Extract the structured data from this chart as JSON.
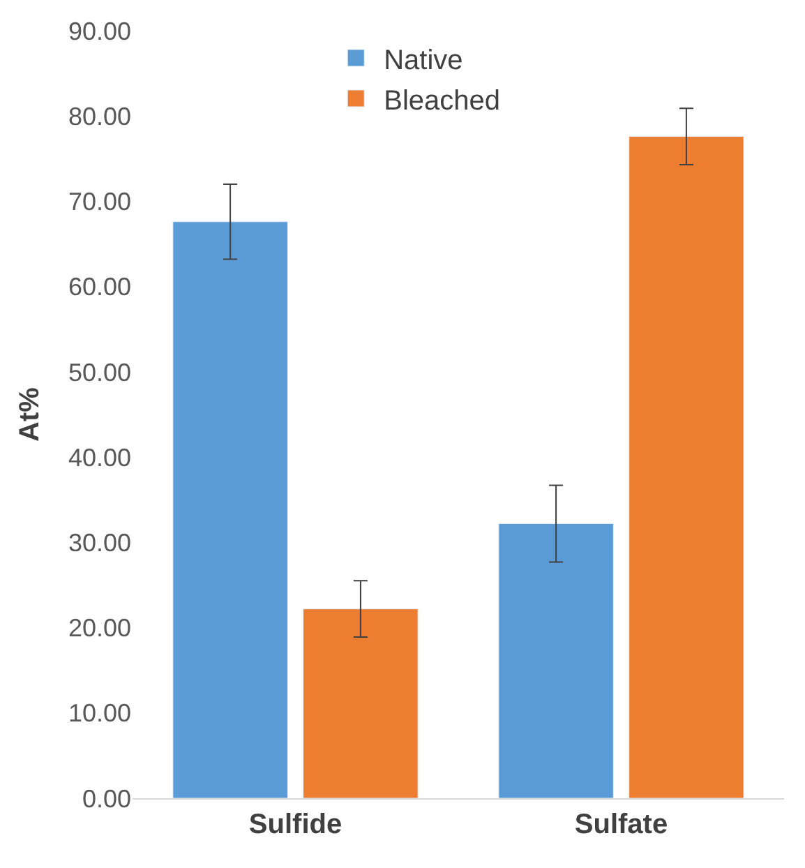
{
  "chart_data": {
    "type": "bar",
    "ylabel": "At%",
    "categories": [
      "Sulfide",
      "Sulfate"
    ],
    "series": [
      {
        "name": "Native",
        "color": "#5b9bd5",
        "values": [
          67.6,
          32.2
        ],
        "errors": [
          4.4,
          4.5
        ]
      },
      {
        "name": "Bleached",
        "color": "#ed7d31",
        "values": [
          22.2,
          77.6
        ],
        "errors": [
          3.3,
          3.3
        ]
      }
    ],
    "ylim": [
      0,
      90
    ],
    "yticks": [
      {
        "value": 0,
        "label": "0.00"
      },
      {
        "value": 10,
        "label": "10.00"
      },
      {
        "value": 20,
        "label": "20.00"
      },
      {
        "value": 30,
        "label": "30.00"
      },
      {
        "value": 40,
        "label": "40.00"
      },
      {
        "value": 50,
        "label": "50.00"
      },
      {
        "value": 60,
        "label": "60.00"
      },
      {
        "value": 70,
        "label": "70.00"
      },
      {
        "value": 80,
        "label": "80.00"
      },
      {
        "value": 90,
        "label": "90.00"
      }
    ],
    "legend": "top"
  }
}
